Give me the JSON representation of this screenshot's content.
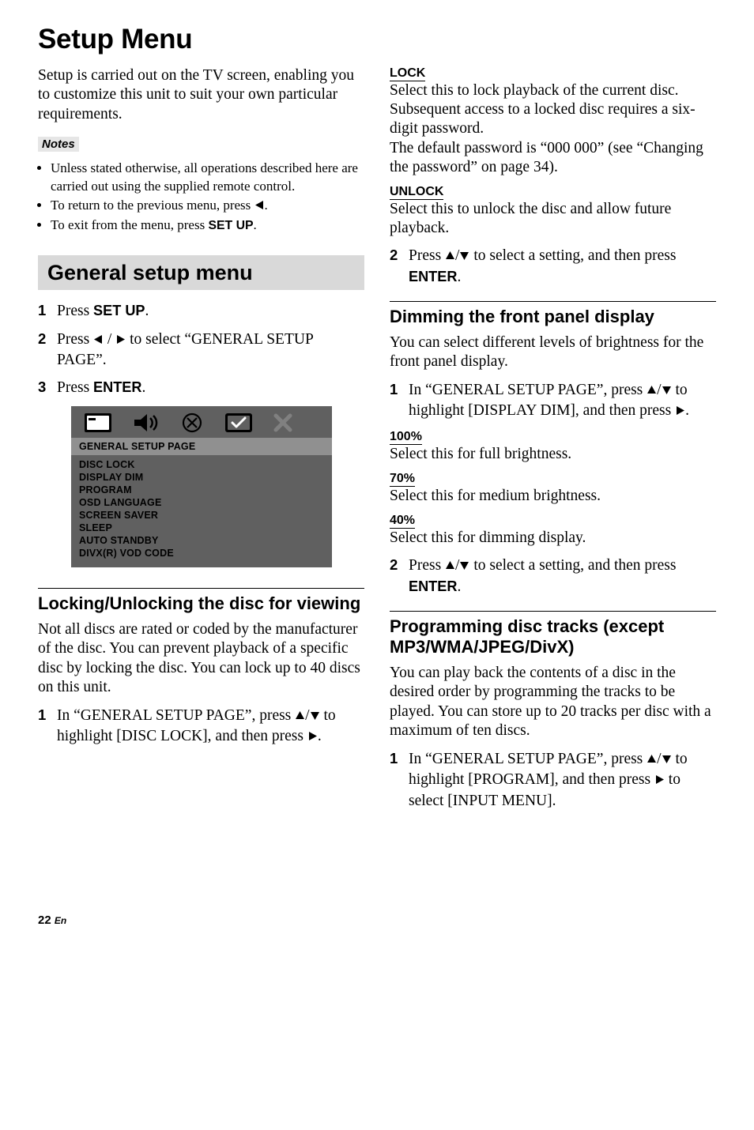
{
  "title": "Setup Menu",
  "intro": "Setup is carried out on the TV screen, enabling you to customize this unit to suit your own particular requirements.",
  "notes_label": "Notes",
  "notes": [
    {
      "pre": "Unless stated otherwise, all operations described here are carried out using the supplied remote control."
    },
    {
      "pre": "To return to the previous menu, press ",
      "glyph": "left-tri",
      "post": "."
    },
    {
      "pre": "To exit from the menu, press ",
      "bold": "SET UP",
      "post": "."
    }
  ],
  "section_bar": "General setup menu",
  "steps_a": [
    {
      "num": "1",
      "parts": [
        {
          "t": "Press "
        },
        {
          "bold": "SET UP"
        },
        {
          "t": "."
        }
      ]
    },
    {
      "num": "2",
      "parts": [
        {
          "t": "Press "
        },
        {
          "glyph": "left-tri"
        },
        {
          "t": " / "
        },
        {
          "glyph": "right-tri"
        },
        {
          "t": " to select “GENERAL SETUP PAGE”."
        }
      ]
    },
    {
      "num": "3",
      "parts": [
        {
          "t": "Press "
        },
        {
          "bold": "ENTER"
        },
        {
          "t": "."
        }
      ]
    }
  ],
  "menu": {
    "header": "GENERAL SETUP PAGE",
    "items": [
      "DISC LOCK",
      "DISPLAY DIM",
      "PROGRAM",
      "OSD LANGUAGE",
      "SCREEN SAVER",
      "SLEEP",
      "AUTO STANDBY",
      "DIVX(R) VOD CODE"
    ]
  },
  "left_sub": {
    "heading": "Locking/Unlocking the disc for viewing",
    "body": "Not all discs are rated or coded by the manufacturer of the disc. You can prevent playback of a specific disc by locking the disc. You can lock up to 40 discs on this unit.",
    "step": {
      "num": "1",
      "parts": [
        {
          "t": "In “GENERAL SETUP PAGE”, press "
        },
        {
          "glyph": "up-tri"
        },
        {
          "t": "/"
        },
        {
          "glyph": "down-tri"
        },
        {
          "t": " to highlight [DISC LOCK], and then press "
        },
        {
          "glyph": "right-tri"
        },
        {
          "t": "."
        }
      ]
    }
  },
  "right": {
    "lock": {
      "title": "LOCK",
      "body": "Select this to lock playback of the current disc. Subsequent access to a locked disc requires a six-digit password.",
      "body2": "The default password is “000 000” (see “Changing the password” on page 34)."
    },
    "unlock": {
      "title": "UNLOCK",
      "body": "Select this to unlock the disc and allow future playback."
    },
    "step_r1": {
      "num": "2",
      "parts": [
        {
          "t": "Press "
        },
        {
          "glyph": "up-tri"
        },
        {
          "t": "/"
        },
        {
          "glyph": "down-tri"
        },
        {
          "t": " to select a setting, and then press "
        },
        {
          "bold": "ENTER"
        },
        {
          "t": "."
        }
      ]
    },
    "dimming": {
      "heading": "Dimming the front panel display",
      "body": "You can select different levels of brightness for the front panel display.",
      "step1": {
        "num": "1",
        "parts": [
          {
            "t": "In “GENERAL SETUP PAGE”, press "
          },
          {
            "glyph": "up-tri"
          },
          {
            "t": "/"
          },
          {
            "glyph": "down-tri"
          },
          {
            "t": " to highlight [DISPLAY DIM], and then press "
          },
          {
            "glyph": "right-tri"
          },
          {
            "t": "."
          }
        ]
      },
      "opts": [
        {
          "title": "100%",
          "body": "Select this for full brightness."
        },
        {
          "title": "70%",
          "body": "Select this for medium brightness."
        },
        {
          "title": "40%",
          "body": "Select this for dimming display."
        }
      ],
      "step2": {
        "num": "2",
        "parts": [
          {
            "t": "Press "
          },
          {
            "glyph": "up-tri"
          },
          {
            "t": "/"
          },
          {
            "glyph": "down-tri"
          },
          {
            "t": " to select a setting, and then press "
          },
          {
            "bold": "ENTER"
          },
          {
            "t": "."
          }
        ]
      }
    },
    "programming": {
      "heading": "Programming disc tracks (except MP3/WMA/JPEG/DivX)",
      "body": "You can play back the contents of a disc in the desired order by programming the tracks to be played. You can store up to 20 tracks per disc with a maximum of ten discs.",
      "step1": {
        "num": "1",
        "parts": [
          {
            "t": "In “GENERAL SETUP PAGE”, press "
          },
          {
            "glyph": "up-tri"
          },
          {
            "t": "/"
          },
          {
            "glyph": "down-tri"
          },
          {
            "t": " to highlight [PROGRAM], and then press "
          },
          {
            "glyph": "right-tri"
          },
          {
            "t": " to select [INPUT MENU]."
          }
        ]
      }
    }
  },
  "footer": {
    "page": "22",
    "lang": "En"
  }
}
